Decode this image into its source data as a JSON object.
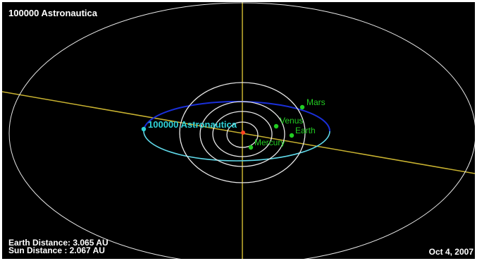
{
  "title": "100000 Astronautica",
  "stats": {
    "earth_distance": "Earth Distance: 3.065 AU",
    "sun_distance": "Sun Distance  : 2.067 AU"
  },
  "date": "Oct 4, 2007",
  "bodies": {
    "asteroid": {
      "label": "100000 Astronautica",
      "color": "#2fd2d8"
    },
    "mars": {
      "label": "Mars",
      "color": "#22cc22"
    },
    "venus": {
      "label": "Venus",
      "color": "#22cc22"
    },
    "earth": {
      "label": "Earth",
      "color": "#22cc22"
    },
    "mercury": {
      "label": "Mercury",
      "color": "#22cc22"
    },
    "sun": {
      "color": "#ff4422"
    }
  },
  "colors": {
    "background": "#000000",
    "planet_orbit": "#e8e8e8",
    "axis_line": "#c8b230",
    "asteroid_orbit_far": "#1a2fd8",
    "asteroid_orbit_near": "#5fd8e8",
    "text": "#ffffff"
  }
}
